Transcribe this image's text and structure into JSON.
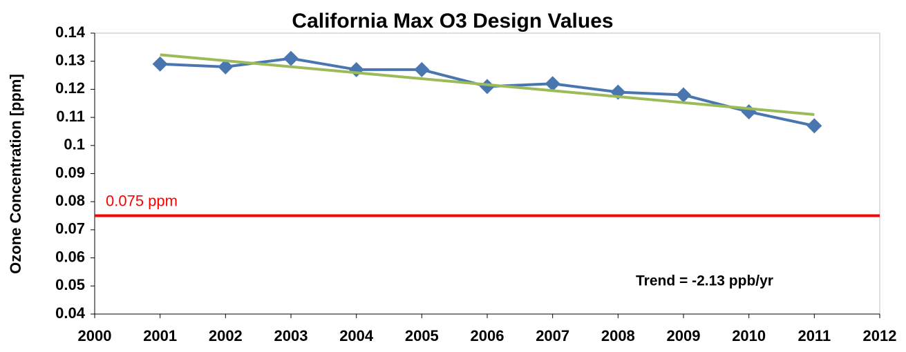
{
  "chart_data": {
    "type": "line",
    "title": "California Max O3 Design Values",
    "y_label": "Ozone Concentration [ppm]",
    "x": [
      2001,
      2002,
      2003,
      2004,
      2005,
      2006,
      2007,
      2008,
      2009,
      2010,
      2011
    ],
    "series": [
      {
        "color": "#4a76b0",
        "values": [
          0.129,
          0.128,
          0.131,
          0.127,
          0.127,
          0.121,
          0.122,
          0.119,
          0.118,
          0.112,
          0.107
        ]
      }
    ],
    "trend_line": {
      "x": [
        2001,
        2011
      ],
      "values": [
        0.1323,
        0.111
      ],
      "color": "#9bbb59"
    },
    "reference_line": {
      "value": 0.075,
      "label": "0.075 ppm",
      "color": "#ff0000"
    },
    "annotation": "Trend = -2.13  ppb/yr",
    "xlim": [
      2000,
      2012
    ],
    "xticks": [
      2000,
      2001,
      2002,
      2003,
      2004,
      2005,
      2006,
      2007,
      2008,
      2009,
      2010,
      2011,
      2012
    ],
    "ylim": [
      0.04,
      0.14
    ],
    "yticks": [
      0.04,
      0.05,
      0.06,
      0.07,
      0.08,
      0.09,
      0.1,
      0.11,
      0.12,
      0.13,
      0.14
    ],
    "grid": false
  }
}
